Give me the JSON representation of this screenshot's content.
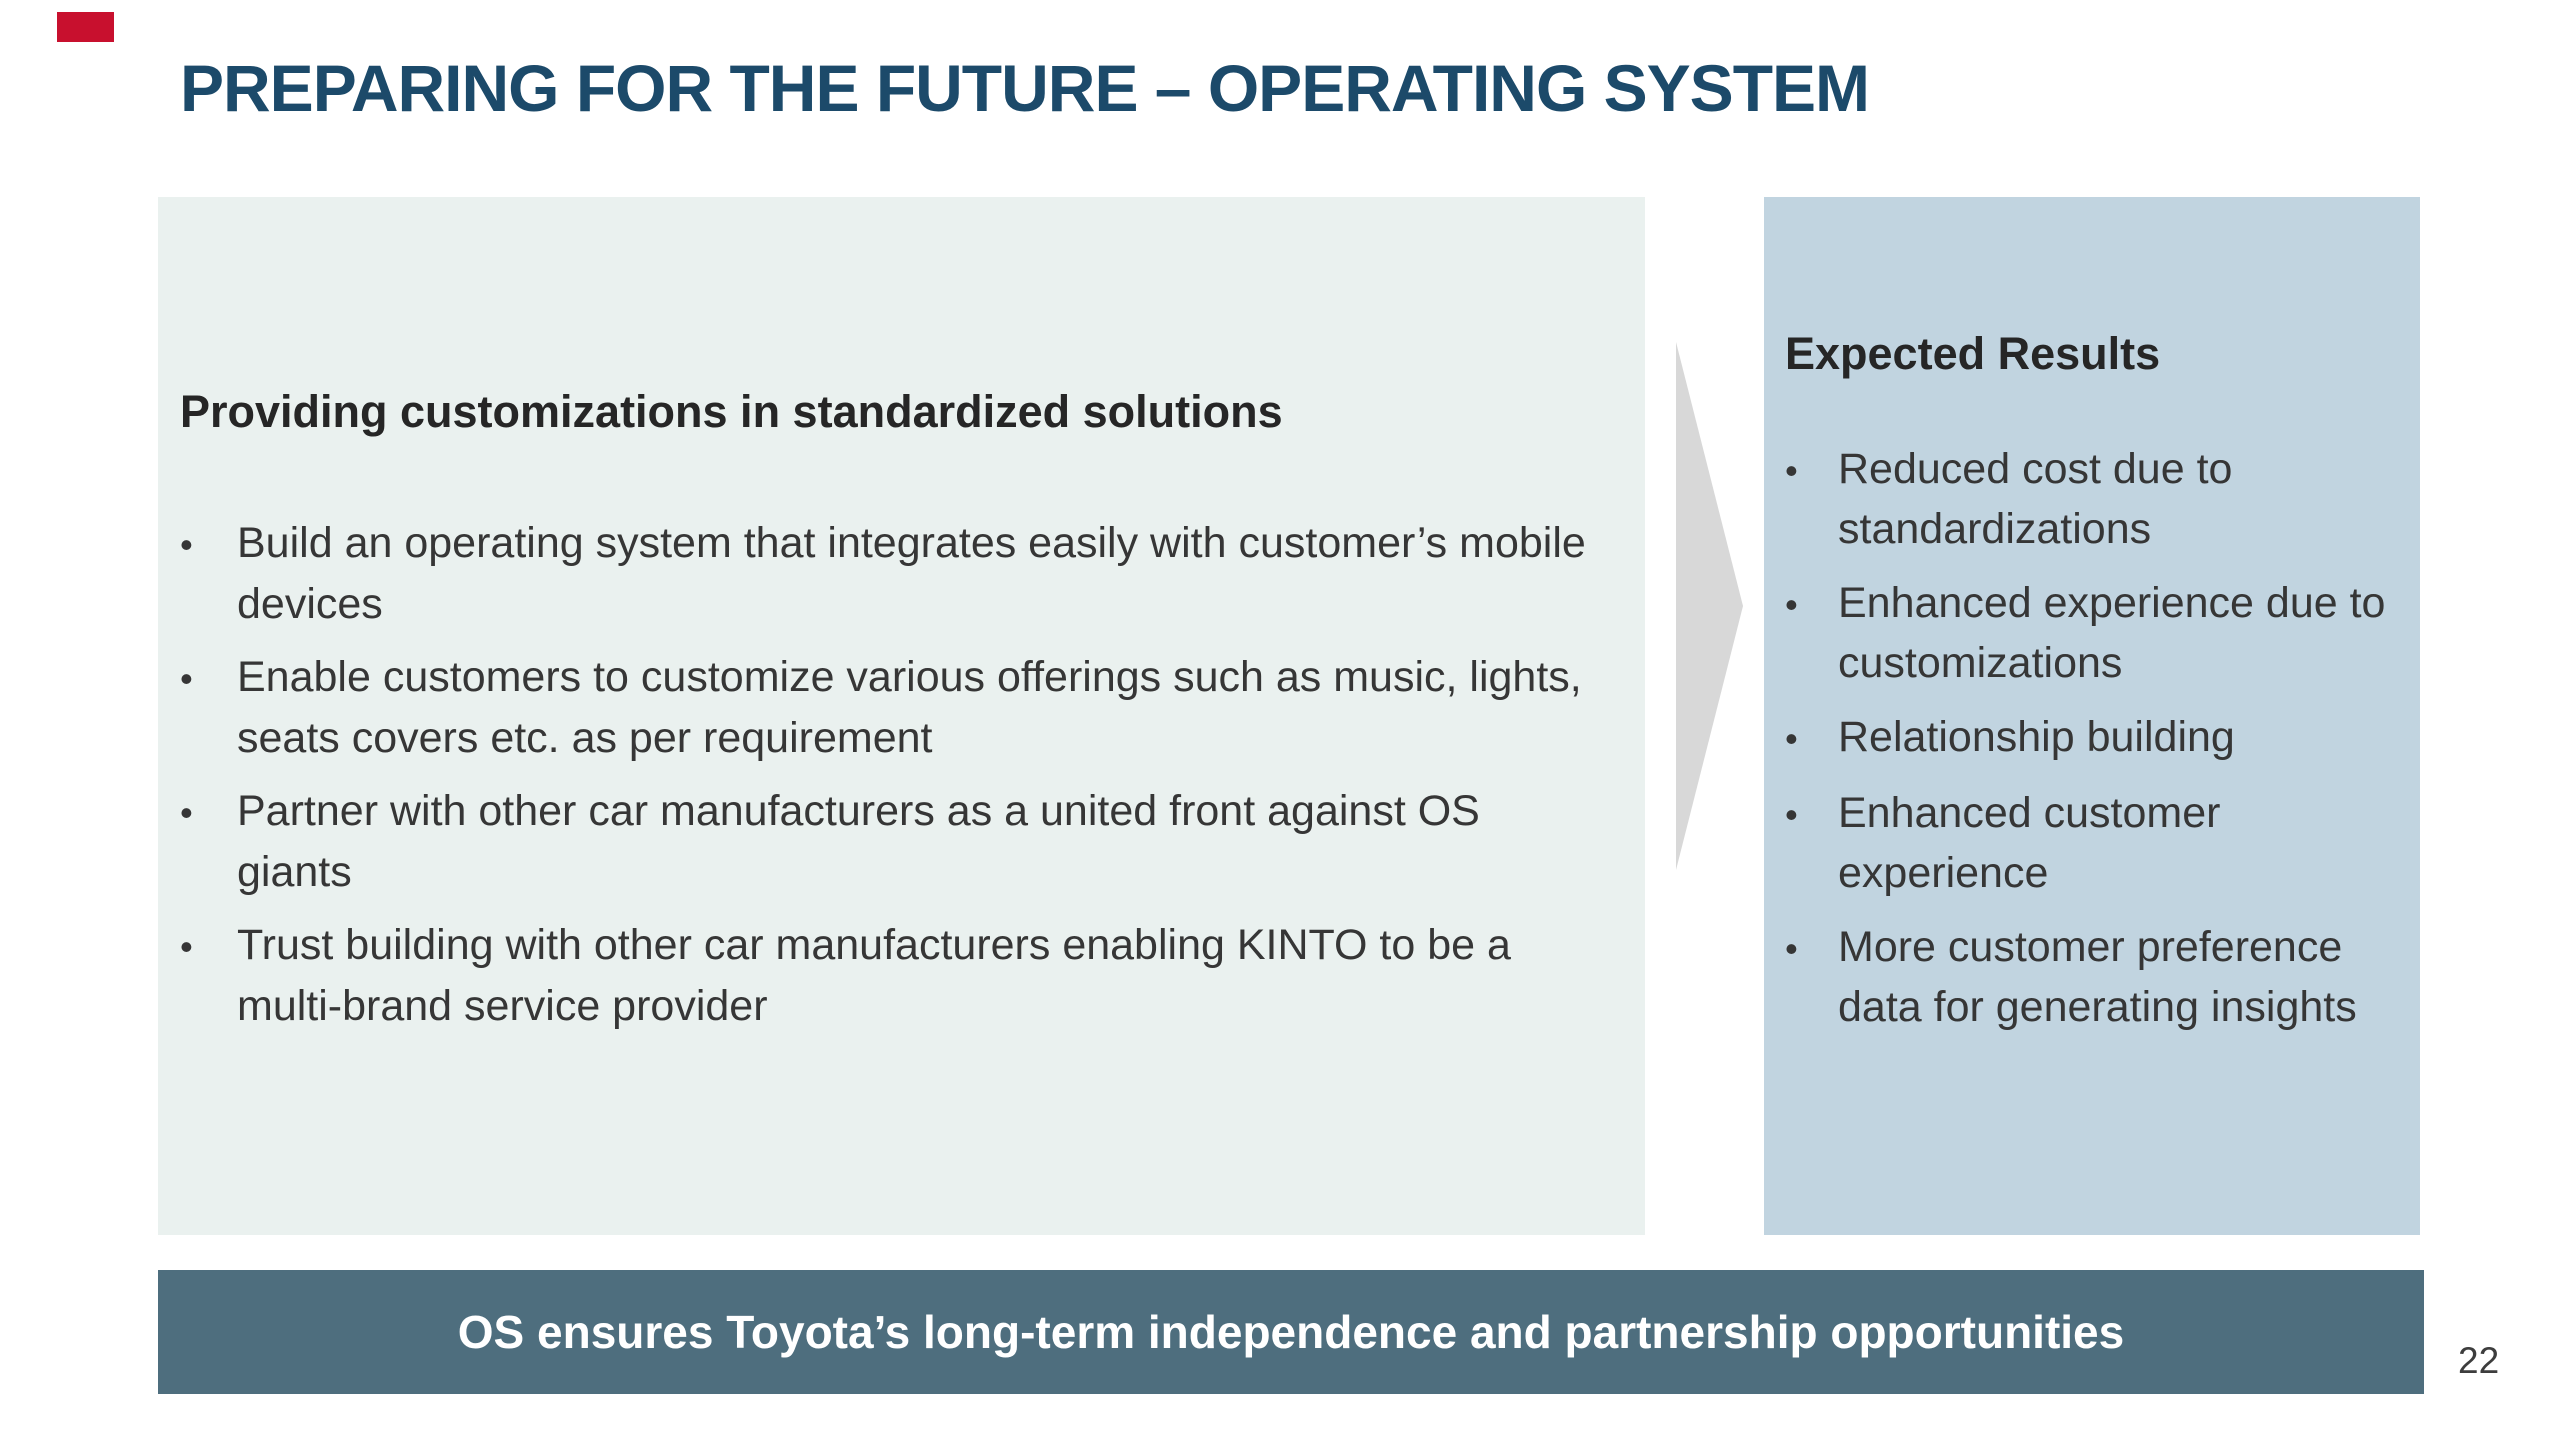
{
  "title": "PREPARING FOR THE FUTURE – OPERATING SYSTEM",
  "left_panel": {
    "heading": "Providing customizations in standardized solutions",
    "bullets": [
      "Build an operating system that integrates easily with customer’s mobile devices",
      "Enable customers to customize various offerings such as music, lights, seats covers etc. as per requirement",
      "Partner with other car manufacturers as a united front against OS giants",
      "Trust building with other car manufacturers enabling KINTO to be a multi-brand service provider"
    ]
  },
  "right_panel": {
    "heading": "Expected Results",
    "bullets": [
      "Reduced cost due to standardizations",
      "Enhanced experience due to customizations",
      "Relationship building",
      "Enhanced customer experience",
      "More customer preference data for generating insights"
    ]
  },
  "footer": {
    "text": "OS ensures Toyota’s long-term independence and partnership opportunities"
  },
  "page_number": "22",
  "icons": {
    "arrow": "right-arrow-icon",
    "bullet": "bullet-dot-icon"
  },
  "colors": {
    "accent_red": "#c8102e",
    "title": "#1c4a6a",
    "left_panel_bg": "#eaf1ef",
    "right_panel_bg": "#c1d4e0",
    "footer_bg": "#4e6e7e",
    "footer_text": "#ffffff",
    "body_text": "#363636",
    "arrow": "#d8d8d8",
    "page_number": "#3d3d3d"
  }
}
